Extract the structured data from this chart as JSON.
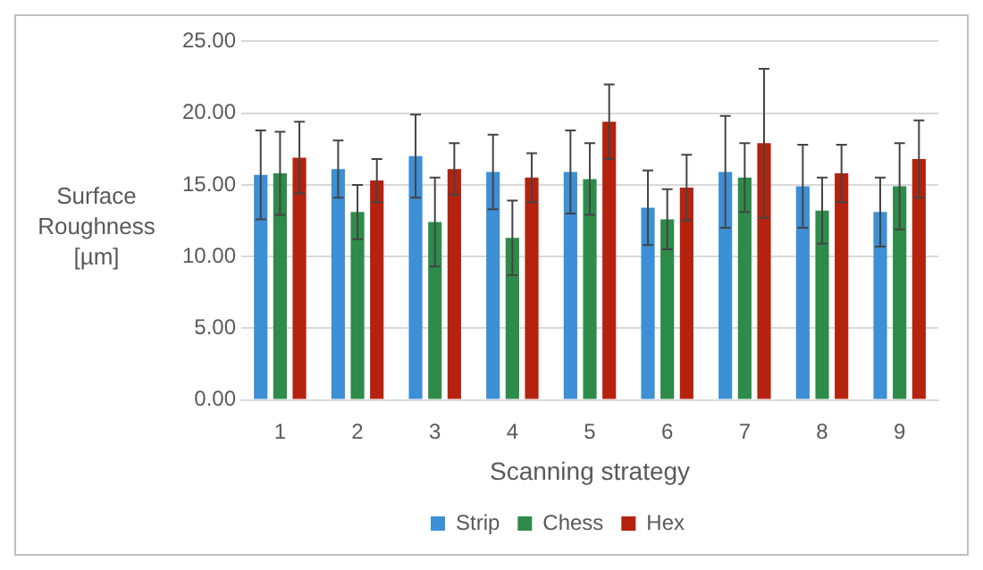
{
  "chart_data": {
    "type": "bar",
    "xlabel": "Scanning strategy",
    "ylabel": "Surface Roughness [µm]",
    "categories": [
      "1",
      "2",
      "3",
      "4",
      "5",
      "6",
      "7",
      "8",
      "9"
    ],
    "series": [
      {
        "name": "Strip",
        "color": "#3d8fd6",
        "values": [
          15.7,
          16.1,
          17.0,
          15.9,
          15.9,
          13.4,
          15.9,
          14.9,
          13.1
        ],
        "errors": [
          3.1,
          2.0,
          2.9,
          2.6,
          2.9,
          2.6,
          3.9,
          2.9,
          2.4
        ]
      },
      {
        "name": "Chess",
        "color": "#2e8b4a",
        "values": [
          15.8,
          13.1,
          12.4,
          11.3,
          15.4,
          12.6,
          15.5,
          13.2,
          14.9
        ],
        "errors": [
          2.9,
          1.9,
          3.1,
          2.6,
          2.5,
          2.1,
          2.4,
          2.3,
          3.0
        ]
      },
      {
        "name": "Hex",
        "color": "#b5220e",
        "values": [
          16.9,
          15.3,
          16.1,
          15.5,
          19.4,
          14.8,
          17.9,
          15.8,
          16.8
        ],
        "errors": [
          2.5,
          1.5,
          1.8,
          1.7,
          2.6,
          2.3,
          5.2,
          2.0,
          2.7
        ]
      }
    ],
    "ylim": [
      0,
      25
    ],
    "yticks": [
      {
        "value": 0,
        "label": "0.00"
      },
      {
        "value": 5,
        "label": "5.00"
      },
      {
        "value": 10,
        "label": "10.00"
      },
      {
        "value": 15,
        "label": "15.00"
      },
      {
        "value": 20,
        "label": "20.00"
      },
      {
        "value": 25,
        "label": "25.00"
      }
    ],
    "grid": "y",
    "legend": "bottom"
  }
}
